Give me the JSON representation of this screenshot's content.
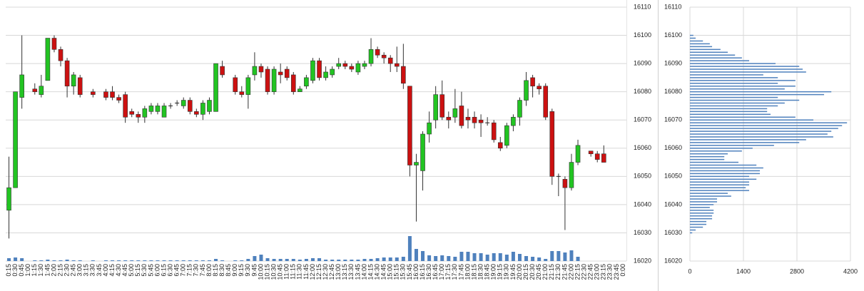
{
  "chart_data": [
    {
      "type": "candlestick",
      "categories": [
        "0:15",
        "0:30",
        "0:45",
        "1:00",
        "1:15",
        "1:30",
        "1:45",
        "2:00",
        "2:15",
        "2:30",
        "2:45",
        "3:00",
        "3:15",
        "3:30",
        "3:45",
        "4:00",
        "4:15",
        "4:30",
        "4:45",
        "5:00",
        "5:15",
        "5:30",
        "5:45",
        "6:00",
        "6:15",
        "6:30",
        "6:45",
        "7:00",
        "7:15",
        "7:30",
        "7:45",
        "8:00",
        "8:15",
        "8:30",
        "8:45",
        "9:00",
        "9:15",
        "9:30",
        "9:45",
        "10:00",
        "10:15",
        "10:30",
        "10:45",
        "11:00",
        "11:15",
        "11:30",
        "11:45",
        "12:00",
        "12:15",
        "12:30",
        "12:45",
        "13:00",
        "13:15",
        "13:30",
        "13:45",
        "14:00",
        "14:15",
        "14:30",
        "14:45",
        "15:00",
        "15:15",
        "15:30",
        "15:45",
        "16:00",
        "16:15",
        "16:30",
        "16:45",
        "17:00",
        "17:15",
        "17:30",
        "17:45",
        "18:00",
        "18:15",
        "18:30",
        "18:45",
        "19:00",
        "19:15",
        "19:30",
        "19:45",
        "20:00",
        "20:15",
        "20:30",
        "20:45",
        "21:00",
        "21:15",
        "21:30",
        "21:45",
        "22:00",
        "22:15",
        "22:30",
        "22:45",
        "23:00",
        "23:15",
        "23:30",
        "23:45",
        "0:00"
      ],
      "open": [
        16038,
        16046,
        16078,
        null,
        16081,
        16079,
        16084,
        16099,
        16095,
        16091,
        16082,
        16085,
        null,
        16080,
        null,
        16080,
        16080,
        16078,
        16079,
        16073,
        16072,
        16071,
        16073,
        16073,
        16071,
        16075,
        16076,
        16075,
        16077,
        16073,
        16072,
        16073,
        16073,
        16089,
        null,
        16085,
        16080,
        16079,
        16086,
        16089,
        16088,
        16080,
        16087,
        16088,
        16086,
        16080,
        16082,
        16084,
        16091,
        16085,
        16086,
        16089,
        16090,
        16089,
        16087,
        16089,
        16090,
        16095,
        16093,
        16092,
        16090,
        16089,
        16082,
        16054,
        16052,
        16065,
        16070,
        16079,
        16071,
        16071,
        16075,
        16071,
        16071,
        16070,
        16069,
        16069,
        16062,
        16061,
        16068,
        16071,
        16077,
        16085,
        16082,
        16082,
        16073,
        16050,
        16049,
        16046,
        16055,
        null,
        16059,
        16058,
        16058,
        null,
        null,
        null
      ],
      "high": [
        16057,
        16080,
        16100,
        null,
        16083,
        16086,
        16099,
        16100,
        16096,
        16092,
        16087,
        16086,
        null,
        16081,
        null,
        16081,
        16082,
        16079,
        16080,
        16074,
        16073,
        16075,
        16076,
        16076,
        16076,
        16076,
        16077,
        16078,
        16078,
        16074,
        16077,
        16078,
        16090,
        16091,
        null,
        16086,
        16082,
        16086,
        16094,
        16090,
        16089,
        16089,
        16090,
        16089,
        16087,
        16082,
        16086,
        16092,
        16092,
        16089,
        16089,
        16092,
        16091,
        16090,
        16091,
        16091,
        16099,
        16096,
        16094,
        16093,
        16096,
        16097,
        16082,
        16058,
        16066,
        16073,
        16082,
        16084,
        16073,
        16081,
        16080,
        16074,
        16073,
        16072,
        16071,
        16070,
        16064,
        16069,
        16072,
        16078,
        16087,
        16086,
        16083,
        16083,
        16074,
        16051,
        16050,
        16058,
        16063,
        null,
        16059,
        16059,
        16061,
        null,
        null,
        null
      ],
      "low": [
        16028,
        16046,
        16074,
        null,
        16079,
        16078,
        16084,
        16094,
        16089,
        16078,
        16079,
        16078,
        null,
        16078,
        null,
        16077,
        16077,
        16076,
        16069,
        16071,
        16069,
        16069,
        16072,
        16072,
        16071,
        16074,
        16075,
        16074,
        16072,
        16071,
        16070,
        16072,
        16073,
        16085,
        null,
        16079,
        16078,
        16074,
        16084,
        16085,
        16079,
        16079,
        16083,
        16084,
        16079,
        16080,
        16081,
        16083,
        16084,
        16084,
        16085,
        16088,
        16088,
        16087,
        16086,
        16088,
        16089,
        16092,
        16090,
        16087,
        16087,
        16081,
        16050,
        16034,
        16045,
        16062,
        16067,
        16070,
        16067,
        16069,
        16067,
        16067,
        16067,
        16064,
        16068,
        16062,
        16059,
        16060,
        16066,
        16068,
        16075,
        16078,
        16079,
        16070,
        16047,
        16043,
        16031,
        16045,
        16054,
        null,
        16057,
        16055,
        16055,
        null,
        null,
        null
      ],
      "close": [
        16046,
        16080,
        16086,
        null,
        16080,
        16082,
        16099,
        16095,
        16091,
        16082,
        16086,
        16079,
        null,
        16079,
        null,
        16078,
        16078,
        16077,
        16071,
        16072,
        16071,
        16074,
        16075,
        16075,
        16075,
        16075,
        16076,
        16077,
        16073,
        16072,
        16076,
        16077,
        16090,
        16086,
        null,
        16080,
        16079,
        16085,
        16089,
        16087,
        16080,
        16088,
        16086,
        16085,
        16080,
        16081,
        16085,
        16091,
        16085,
        16087,
        16088,
        16090,
        16089,
        16088,
        16090,
        16090,
        16095,
        16093,
        16092,
        16090,
        16089,
        16083,
        16054,
        16055,
        16065,
        16069,
        16079,
        16071,
        16070,
        16074,
        16068,
        16070,
        16069,
        16069,
        16069,
        16063,
        16060,
        16068,
        16071,
        16077,
        16084,
        16082,
        16081,
        16071,
        16050,
        16050,
        16046,
        16055,
        16061,
        null,
        16058,
        16056,
        16055,
        null,
        null,
        null
      ],
      "volume": [
        4,
        5,
        4,
        null,
        1,
        1,
        2,
        1,
        1,
        2,
        1,
        1,
        null,
        1,
        null,
        1,
        1,
        1,
        1,
        1,
        1,
        1,
        1,
        1,
        1,
        1,
        1,
        1,
        1,
        1,
        1,
        1,
        3,
        1,
        null,
        1,
        1,
        3,
        7,
        9,
        4,
        3,
        3,
        3,
        3,
        2,
        3,
        4,
        4,
        2,
        2,
        2,
        2,
        2,
        2,
        3,
        3,
        4,
        5,
        5,
        5,
        6,
        35,
        17,
        14,
        8,
        7,
        8,
        7,
        6,
        13,
        13,
        11,
        11,
        9,
        11,
        11,
        9,
        13,
        10,
        7,
        6,
        5,
        3,
        14,
        14,
        12,
        15,
        6,
        null,
        0,
        0,
        0,
        null,
        null,
        null
      ],
      "vlim": [
        0,
        40
      ],
      "up_color": "#22c422",
      "down_color": "#cc1111",
      "volume_color": "#4f81bd",
      "ylim": [
        16020,
        16110
      ],
      "yticks": [
        16020,
        16030,
        16040,
        16050,
        16060,
        16070,
        16080,
        16090,
        16100,
        16110
      ],
      "grid": true
    },
    {
      "type": "barh",
      "levels": [
        16100,
        16099,
        16098,
        16097,
        16096,
        16095,
        16094,
        16093,
        16092,
        16091,
        16090,
        16089,
        16088,
        16087,
        16086,
        16085,
        16084,
        16083,
        16082,
        16081,
        16080,
        16079,
        16078,
        16077,
        16076,
        16075,
        16074,
        16073,
        16072,
        16071,
        16070,
        16069,
        16068,
        16067,
        16066,
        16065,
        16064,
        16063,
        16062,
        16061,
        16060,
        16059,
        16058,
        16057,
        16056,
        16055,
        16054,
        16053,
        16052,
        16051,
        16050,
        16049,
        16048,
        16047,
        16046,
        16045,
        16044,
        16043,
        16042,
        16041,
        16040,
        16039,
        16038,
        16037,
        16036,
        16035,
        16034,
        16033,
        16032,
        16031,
        16030
      ],
      "values": [
        90,
        150,
        340,
        520,
        580,
        800,
        990,
        1180,
        1360,
        1550,
        2240,
        2860,
        2950,
        3040,
        1920,
        2300,
        2760,
        2300,
        2760,
        2480,
        3700,
        3510,
        2300,
        2860,
        2480,
        2300,
        2020,
        2020,
        2110,
        2760,
        3230,
        4110,
        3980,
        3880,
        3700,
        3600,
        3750,
        3040,
        2860,
        2200,
        1640,
        1360,
        990,
        900,
        900,
        1270,
        1740,
        1920,
        1830,
        1830,
        1550,
        1740,
        1550,
        1550,
        1460,
        1550,
        990,
        1080,
        710,
        710,
        620,
        520,
        620,
        620,
        580,
        580,
        430,
        430,
        340,
        150,
        60
      ],
      "color": "#4f81bd",
      "xlim": [
        0,
        4200
      ],
      "xticks": [
        0,
        1400,
        2800,
        4200
      ],
      "ylim": [
        16020,
        16110
      ],
      "yticks": [
        16020,
        16030,
        16040,
        16050,
        16060,
        16070,
        16080,
        16090,
        16100,
        16110
      ],
      "grid": true
    }
  ]
}
